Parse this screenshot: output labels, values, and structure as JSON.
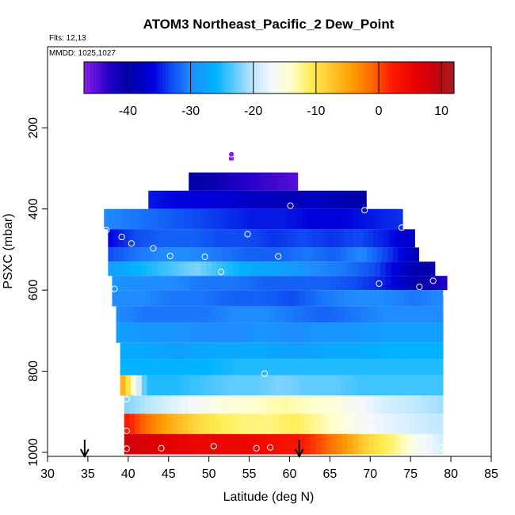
{
  "chart_data": {
    "type": "heatmap",
    "title": "ATOM3 Northeast_Pacific_2 Dew_Point",
    "flights_label": "Flts: 12,13",
    "dates_label": "MMDD: 1025,1027",
    "xlabel": "Latitude (deg N)",
    "ylabel": "PSXC (mbar)",
    "xlim": [
      30,
      85
    ],
    "ylim": [
      1010,
      0
    ],
    "x_ticks": [
      "30",
      "35",
      "40",
      "45",
      "50",
      "55",
      "60",
      "65",
      "70",
      "75",
      "80",
      "85"
    ],
    "y_ticks": [
      "200",
      "400",
      "600",
      "800",
      "1000"
    ],
    "colorbar": {
      "range": [
        -47,
        12
      ],
      "ticks": [
        "-40",
        "-30",
        "-20",
        "-10",
        "0",
        "10"
      ],
      "stops": [
        {
          "v": -47,
          "c": "#8b1de6"
        },
        {
          "v": -43,
          "c": "#2200c8"
        },
        {
          "v": -40,
          "c": "#0000a8"
        },
        {
          "v": -36,
          "c": "#0000dd"
        },
        {
          "v": -33,
          "c": "#0f4cf2"
        },
        {
          "v": -30,
          "c": "#1f8cff"
        },
        {
          "v": -26,
          "c": "#00b2ff"
        },
        {
          "v": -22,
          "c": "#7fd3ff"
        },
        {
          "v": -20,
          "c": "#bfe8ff"
        },
        {
          "v": -17,
          "c": "#f4f8ff"
        },
        {
          "v": -14,
          "c": "#ffffcc"
        },
        {
          "v": -11,
          "c": "#ffee55"
        },
        {
          "v": -8,
          "c": "#ffcc33"
        },
        {
          "v": -4,
          "c": "#ff9900"
        },
        {
          "v": -1,
          "c": "#ff6600"
        },
        {
          "v": 2,
          "c": "#ff1a00"
        },
        {
          "v": 6,
          "c": "#e60000"
        },
        {
          "v": 9,
          "c": "#c80010"
        },
        {
          "v": 12,
          "c": "#a02020"
        }
      ]
    },
    "bands": [
      {
        "p_top": 260,
        "p_bot": 280,
        "segments": [
          {
            "x0": 52.5,
            "x1": 53.0,
            "values": [
              -47
            ]
          }
        ]
      },
      {
        "p_top": 310,
        "p_bot": 355,
        "segments": [
          {
            "x0": 47.5,
            "x1": 61.0,
            "values": [
              -40,
              -41,
              -43,
              -44,
              -45
            ]
          }
        ]
      },
      {
        "p_top": 355,
        "p_bot": 400,
        "segments": [
          {
            "x0": 42.5,
            "x1": 69.5,
            "values": [
              -35,
              -36,
              -36,
              -37,
              -38,
              -39,
              -38,
              -39,
              -40
            ]
          }
        ]
      },
      {
        "p_top": 400,
        "p_bot": 450,
        "segments": [
          {
            "x0": 37.0,
            "x1": 74.0,
            "values": [
              -30,
              -31,
              -32,
              -33,
              -34,
              -35,
              -35,
              -36,
              -36,
              -35,
              -34
            ]
          }
        ]
      },
      {
        "p_top": 450,
        "p_bot": 495,
        "segments": [
          {
            "x0": 37.5,
            "x1": 75.5,
            "values": [
              -36,
              -33,
              -32,
              -32,
              -33,
              -33,
              -34,
              -33,
              -34,
              -33,
              -35,
              -38
            ]
          }
        ]
      },
      {
        "p_top": 495,
        "p_bot": 530,
        "segments": [
          {
            "x0": 37.5,
            "x1": 76.0,
            "values": [
              -33,
              -31,
              -30,
              -30,
              -31,
              -32,
              -32,
              -31,
              -32,
              -30,
              -34,
              -39
            ]
          }
        ]
      },
      {
        "p_top": 530,
        "p_bot": 565,
        "segments": [
          {
            "x0": 37.5,
            "x1": 78.0,
            "values": [
              -28,
              -26,
              -24,
              -22,
              -25,
              -27,
              -28,
              -30,
              -31,
              -33,
              -38,
              -41
            ]
          }
        ]
      },
      {
        "p_top": 565,
        "p_bot": 600,
        "segments": [
          {
            "x0": 38.0,
            "x1": 79.5,
            "values": [
              -29,
              -30,
              -30,
              -31,
              -31,
              -32,
              -32,
              -32,
              -33,
              -35,
              -40,
              -43
            ]
          }
        ]
      },
      {
        "p_top": 600,
        "p_bot": 640,
        "segments": [
          {
            "x0": 38.0,
            "x1": 79.0,
            "values": [
              -30,
              -30,
              -31,
              -31,
              -32,
              -32,
              -33,
              -31,
              -30,
              -30,
              -31,
              -30
            ]
          }
        ]
      },
      {
        "p_top": 640,
        "p_bot": 680,
        "segments": [
          {
            "x0": 38.5,
            "x1": 79.0,
            "values": [
              -30,
              -31,
              -31,
              -31,
              -30,
              -30,
              -31,
              -32,
              -31,
              -30,
              -30,
              -30
            ]
          }
        ]
      },
      {
        "p_top": 680,
        "p_bot": 730,
        "segments": [
          {
            "x0": 38.5,
            "x1": 79.0,
            "values": [
              -28,
              -29,
              -29,
              -30,
              -30,
              -29,
              -30,
              -29,
              -29,
              -28,
              -28,
              -28
            ]
          }
        ]
      },
      {
        "p_top": 730,
        "p_bot": 770,
        "segments": [
          {
            "x0": 39.0,
            "x1": 79.0,
            "values": [
              -27,
              -27,
              -28,
              -27,
              -27,
              -27,
              -28,
              -27,
              -27,
              -26,
              -26,
              -26
            ]
          }
        ]
      },
      {
        "p_top": 770,
        "p_bot": 810,
        "segments": [
          {
            "x0": 39.0,
            "x1": 79.0,
            "values": [
              -26,
              -26,
              -26,
              -26,
              -25,
              -25,
              -25,
              -25,
              -25,
              -25,
              -25,
              -25
            ]
          }
        ]
      },
      {
        "p_top": 810,
        "p_bot": 860,
        "segments": [
          {
            "x0": 39.0,
            "x1": 79.0,
            "values": [
              -4,
              -25,
              -25,
              -24,
              -23,
              -23,
              -22,
              -23,
              -23,
              -24,
              -24,
              -24,
              -24
            ]
          }
        ]
      },
      {
        "p_top": 860,
        "p_bot": 905,
        "segments": [
          {
            "x0": 39.5,
            "x1": 79.0,
            "values": [
              -22,
              -20,
              -18,
              -16,
              -15,
              -14,
              -13,
              -14,
              -15,
              -17,
              -19,
              -20,
              -21
            ]
          }
        ]
      },
      {
        "p_top": 905,
        "p_bot": 955,
        "segments": [
          {
            "x0": 39.5,
            "x1": 79.0,
            "values": [
              3,
              -2,
              -6,
              -9,
              -11,
              -12,
              -12,
              -11,
              -13,
              -15,
              -17,
              -18,
              -19,
              -20
            ]
          }
        ]
      },
      {
        "p_top": 955,
        "p_bot": 1005,
        "segments": [
          {
            "x0": 39.5,
            "x1": 79.0,
            "values": [
              8,
              7,
              6,
              5,
              5,
              5,
              4,
              3,
              0,
              -4,
              -9,
              -12,
              -16,
              -19
            ]
          }
        ]
      }
    ],
    "markers": [
      {
        "x": 52.8,
        "p": 265
      },
      {
        "x": 60.1,
        "p": 392
      },
      {
        "x": 69.3,
        "p": 403
      },
      {
        "x": 37.3,
        "p": 452
      },
      {
        "x": 39.2,
        "p": 469
      },
      {
        "x": 40.4,
        "p": 485
      },
      {
        "x": 54.8,
        "p": 462
      },
      {
        "x": 43.1,
        "p": 497
      },
      {
        "x": 45.2,
        "p": 516
      },
      {
        "x": 49.5,
        "p": 518
      },
      {
        "x": 58.6,
        "p": 517
      },
      {
        "x": 51.5,
        "p": 555
      },
      {
        "x": 73.9,
        "p": 446
      },
      {
        "x": 38.3,
        "p": 597
      },
      {
        "x": 71.1,
        "p": 584
      },
      {
        "x": 76.1,
        "p": 592
      },
      {
        "x": 77.8,
        "p": 577
      },
      {
        "x": 79.4,
        "p": 609
      },
      {
        "x": 56.9,
        "p": 806
      },
      {
        "x": 39.8,
        "p": 869
      },
      {
        "x": 39.8,
        "p": 947
      },
      {
        "x": 70.3,
        "p": 945
      },
      {
        "x": 75.3,
        "p": 983
      },
      {
        "x": 78.8,
        "p": 988
      },
      {
        "x": 39.8,
        "p": 991
      },
      {
        "x": 44.1,
        "p": 990
      },
      {
        "x": 50.6,
        "p": 985
      },
      {
        "x": 55.9,
        "p": 990
      },
      {
        "x": 57.6,
        "p": 988
      }
    ],
    "arrows": [
      34.6,
      61.2
    ]
  }
}
